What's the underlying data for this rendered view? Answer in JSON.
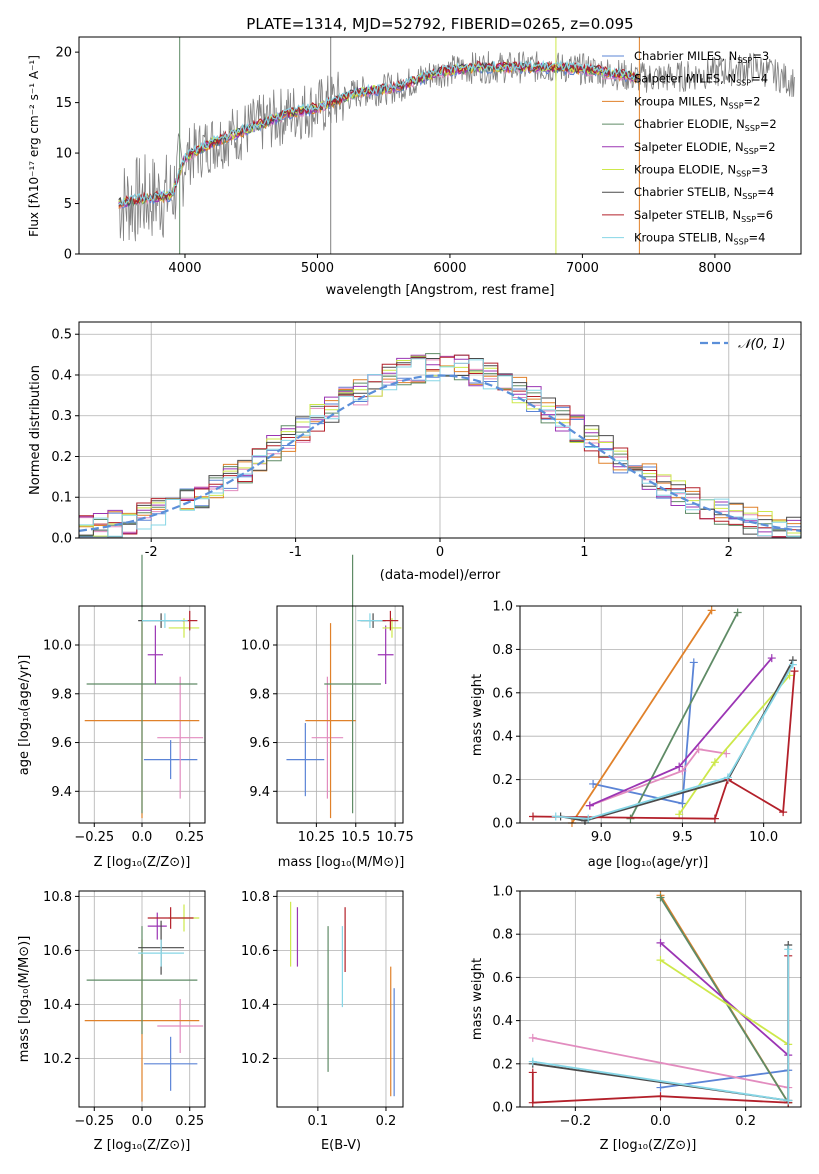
{
  "chart_data": [
    {
      "id": "spectrum",
      "type": "line",
      "title": "PLATE=1314, MJD=52792, FIBERID=0265, z=0.095",
      "xlabel": "wavelength [Angstrom, rest frame]",
      "ylabel": "Flux [fλ10⁻¹⁷ erg cm⁻² s⁻¹ A⁻¹]",
      "xlim": [
        3200,
        8650
      ],
      "ylim": [
        0,
        21.5
      ],
      "xticks": [
        4000,
        5000,
        6000,
        7000,
        8000
      ],
      "yticks": [
        0,
        5,
        10,
        15,
        20
      ],
      "grid": false,
      "legend_position": "top-right",
      "legend": [
        {
          "label": "Chabrier MILES, N",
          "sub": "SSP",
          "suffix": "=3",
          "color": "#5b84d6"
        },
        {
          "label": "Salpeter MILES, N",
          "sub": "SSP",
          "suffix": "=4",
          "color": "#e28cbf"
        },
        {
          "label": "Kroupa MILES, N",
          "sub": "SSP",
          "suffix": "=2",
          "color": "#e0812a"
        },
        {
          "label": "Chabrier ELODIE, N",
          "sub": "SSP",
          "suffix": "=2",
          "color": "#5f8b66"
        },
        {
          "label": "Salpeter ELODIE, N",
          "sub": "SSP",
          "suffix": "=2",
          "color": "#9b35b4"
        },
        {
          "label": "Kroupa ELODIE, N",
          "sub": "SSP",
          "suffix": "=3",
          "color": "#cde84a"
        },
        {
          "label": "Chabrier STELIB, N",
          "sub": "SSP",
          "suffix": "=4",
          "color": "#4a4a4a"
        },
        {
          "label": "Salpeter STELIB, N",
          "sub": "SSP",
          "suffix": "=6",
          "color": "#b3202a"
        },
        {
          "label": "Kroupa STELIB, N",
          "sub": "SSP",
          "suffix": "=4",
          "color": "#86d6e6"
        }
      ],
      "data_envelope": {
        "x": [
          3500,
          3700,
          3900,
          4000,
          4200,
          4500,
          4800,
          5000,
          5300,
          5600,
          5900,
          6200,
          6500,
          6800,
          7100,
          7400,
          7700,
          8000,
          8300,
          8600
        ],
        "y": [
          5.0,
          5.5,
          5.8,
          9.5,
          11.0,
          12.5,
          14.0,
          14.5,
          16.0,
          16.5,
          18.0,
          18.5,
          18.5,
          18.5,
          18.2,
          17.5,
          17.5,
          18.0,
          18.5,
          17.0
        ]
      }
    },
    {
      "id": "residuals",
      "type": "histogram",
      "xlabel": "(data-model)/error",
      "ylabel": "Normed distribution",
      "xlim": [
        -2.5,
        2.5
      ],
      "ylim": [
        0,
        0.53
      ],
      "xticks": [
        -2,
        -1,
        0,
        1,
        2
      ],
      "yticks": [
        0.0,
        0.1,
        0.2,
        0.3,
        0.4,
        0.5
      ],
      "grid": true,
      "legend": [
        {
          "label": "𝒩(0, 1)",
          "color": "#5b8fd9"
        }
      ],
      "legend_position": "top-right",
      "normal_curve": {
        "mean": 0,
        "sigma": 1
      }
    },
    {
      "id": "age-vs-Z",
      "type": "errorbar",
      "xlabel": "Z [log₁₀(Z/Z⊙)]",
      "ylabel": "age  [log₁₀(age/yr)]",
      "xlim": [
        -0.33,
        0.33
      ],
      "ylim": [
        9.27,
        10.16
      ],
      "xticks": [
        -0.25,
        0.0,
        0.25
      ],
      "yticks": [
        9.4,
        9.6,
        9.8,
        10.0
      ],
      "grid": true,
      "points": [
        {
          "x": 0.15,
          "y": 9.53,
          "xerr": 0.14,
          "yerr": 0.08,
          "color": "#5b84d6"
        },
        {
          "x": 0.2,
          "y": 9.62,
          "xerr": 0.12,
          "yerr": 0.25,
          "color": "#e28cbf"
        },
        {
          "x": 0.0,
          "y": 9.69,
          "xerr": 0.3,
          "yerr": 0.4,
          "color": "#e0812a"
        },
        {
          "x": 0.0,
          "y": 9.84,
          "xerr": 0.29,
          "yerr": 0.53,
          "color": "#5f8b66"
        },
        {
          "x": 0.07,
          "y": 9.96,
          "xerr": 0.04,
          "yerr": 0.12,
          "color": "#9b35b4"
        },
        {
          "x": 0.22,
          "y": 10.07,
          "xerr": 0.08,
          "yerr": 0.04,
          "color": "#cde84a"
        },
        {
          "x": 0.1,
          "y": 10.1,
          "xerr": 0.12,
          "yerr": 0.03,
          "color": "#4a4a4a"
        },
        {
          "x": 0.25,
          "y": 10.1,
          "xerr": 0.04,
          "yerr": 0.04,
          "color": "#b3202a"
        },
        {
          "x": 0.12,
          "y": 10.1,
          "xerr": 0.12,
          "yerr": 0.03,
          "color": "#86d6e6"
        }
      ]
    },
    {
      "id": "age-vs-mass",
      "type": "errorbar",
      "xlabel": "mass [log₁₀(M/M⊙)]",
      "ylabel": "",
      "xlim": [
        10.0,
        10.8
      ],
      "ylim": [
        9.27,
        10.16
      ],
      "xticks": [
        10.25,
        10.5,
        10.75
      ],
      "yticks": [
        9.4,
        9.6,
        9.8,
        10.0
      ],
      "grid": true,
      "points": [
        {
          "x": 10.18,
          "y": 9.53,
          "xerr": 0.12,
          "yerr": 0.15,
          "color": "#5b84d6"
        },
        {
          "x": 10.32,
          "y": 9.62,
          "xerr": 0.1,
          "yerr": 0.25,
          "color": "#e28cbf"
        },
        {
          "x": 10.34,
          "y": 9.69,
          "xerr": 0.16,
          "yerr": 0.4,
          "color": "#e0812a"
        },
        {
          "x": 10.48,
          "y": 9.84,
          "xerr": 0.18,
          "yerr": 0.53,
          "color": "#5f8b66"
        },
        {
          "x": 10.69,
          "y": 9.96,
          "xerr": 0.05,
          "yerr": 0.12,
          "color": "#9b35b4"
        },
        {
          "x": 10.73,
          "y": 10.07,
          "xerr": 0.06,
          "yerr": 0.04,
          "color": "#cde84a"
        },
        {
          "x": 10.61,
          "y": 10.1,
          "xerr": 0.08,
          "yerr": 0.03,
          "color": "#4a4a4a"
        },
        {
          "x": 10.72,
          "y": 10.1,
          "xerr": 0.05,
          "yerr": 0.04,
          "color": "#b3202a"
        },
        {
          "x": 10.59,
          "y": 10.1,
          "xerr": 0.08,
          "yerr": 0.03,
          "color": "#86d6e6"
        }
      ]
    },
    {
      "id": "weight-vs-age",
      "type": "line",
      "xlabel": "age  [log₁₀(age/yr)]",
      "ylabel": "mass weight",
      "xlim": [
        8.5,
        10.23
      ],
      "ylim": [
        0.0,
        1.0
      ],
      "xticks": [
        9.0,
        9.5,
        10.0
      ],
      "yticks": [
        0.0,
        0.2,
        0.4,
        0.6,
        0.8,
        1.0
      ],
      "grid": true,
      "series": [
        {
          "color": "#5b84d6",
          "points": [
            [
              8.95,
              0.18
            ],
            [
              9.5,
              0.09
            ],
            [
              9.57,
              0.74
            ]
          ]
        },
        {
          "color": "#e28cbf",
          "points": [
            [
              8.93,
              0.08
            ],
            [
              9.5,
              0.24
            ],
            [
              9.6,
              0.34
            ],
            [
              9.77,
              0.32
            ]
          ]
        },
        {
          "color": "#e0812a",
          "points": [
            [
              8.82,
              0.0
            ],
            [
              9.68,
              0.98
            ]
          ]
        },
        {
          "color": "#5f8b66",
          "points": [
            [
              9.18,
              0.02
            ],
            [
              9.84,
              0.97
            ]
          ]
        },
        {
          "color": "#9b35b4",
          "points": [
            [
              8.93,
              0.08
            ],
            [
              9.48,
              0.26
            ],
            [
              10.05,
              0.76
            ]
          ]
        },
        {
          "color": "#cde84a",
          "points": [
            [
              9.48,
              0.04
            ],
            [
              9.7,
              0.28
            ],
            [
              10.16,
              0.68
            ]
          ]
        },
        {
          "color": "#4a4a4a",
          "points": [
            [
              8.75,
              0.03
            ],
            [
              8.9,
              0.01
            ],
            [
              9.78,
              0.2
            ],
            [
              10.18,
              0.75
            ]
          ]
        },
        {
          "color": "#b3202a",
          "points": [
            [
              8.58,
              0.03
            ],
            [
              9.7,
              0.02
            ],
            [
              9.78,
              0.2
            ],
            [
              10.12,
              0.05
            ],
            [
              10.19,
              0.7
            ]
          ]
        },
        {
          "color": "#86d6e6",
          "points": [
            [
              8.72,
              0.03
            ],
            [
              8.92,
              0.02
            ],
            [
              9.78,
              0.21
            ],
            [
              10.18,
              0.73
            ]
          ]
        }
      ]
    },
    {
      "id": "mass-vs-Z",
      "type": "errorbar",
      "xlabel": "Z [log₁₀(Z/Z⊙)]",
      "ylabel": "mass [log₁₀(M/M⊙)]",
      "xlim": [
        -0.33,
        0.33
      ],
      "ylim": [
        10.02,
        10.82
      ],
      "xticks": [
        -0.25,
        0.0,
        0.25
      ],
      "yticks": [
        10.2,
        10.4,
        10.6,
        10.8
      ],
      "grid": true,
      "points": [
        {
          "x": 0.15,
          "y": 10.18,
          "xerr": 0.14,
          "yerr": 0.1,
          "color": "#5b84d6"
        },
        {
          "x": 0.2,
          "y": 10.32,
          "xerr": 0.12,
          "yerr": 0.1,
          "color": "#e28cbf"
        },
        {
          "x": 0.0,
          "y": 10.34,
          "xerr": 0.3,
          "yerr": 0.3,
          "color": "#e0812a"
        },
        {
          "x": 0.0,
          "y": 10.49,
          "xerr": 0.29,
          "yerr": 0.2,
          "color": "#5f8b66"
        },
        {
          "x": 0.08,
          "y": 10.69,
          "xerr": 0.05,
          "yerr": 0.05,
          "color": "#9b35b4"
        },
        {
          "x": 0.22,
          "y": 10.72,
          "xerr": 0.08,
          "yerr": 0.05,
          "color": "#cde84a"
        },
        {
          "x": 0.1,
          "y": 10.61,
          "xerr": 0.12,
          "yerr": 0.1,
          "color": "#4a4a4a"
        },
        {
          "x": 0.15,
          "y": 10.72,
          "xerr": 0.12,
          "yerr": 0.04,
          "color": "#b3202a"
        },
        {
          "x": 0.1,
          "y": 10.59,
          "xerr": 0.12,
          "yerr": 0.05,
          "color": "#86d6e6"
        }
      ]
    },
    {
      "id": "mass-vs-ebv",
      "type": "errorbar",
      "xlabel": "E(B-V)",
      "ylabel": "",
      "xlim": [
        0.04,
        0.225
      ],
      "ylim": [
        10.02,
        10.82
      ],
      "xticks": [
        0.1,
        0.2
      ],
      "yticks": [
        10.2,
        10.4,
        10.6,
        10.8
      ],
      "grid": true,
      "points": [
        {
          "x": 0.212,
          "y": 10.26,
          "yerr": 0.2,
          "color": "#5b84d6"
        },
        {
          "x": 0.207,
          "y": 10.3,
          "yerr": 0.24,
          "color": "#e0812a"
        },
        {
          "x": 0.115,
          "y": 10.42,
          "yerr": 0.27,
          "color": "#5f8b66"
        },
        {
          "x": 0.07,
          "y": 10.65,
          "yerr": 0.11,
          "color": "#9b35b4"
        },
        {
          "x": 0.06,
          "y": 10.66,
          "yerr": 0.12,
          "color": "#cde84a"
        },
        {
          "x": 0.136,
          "y": 10.54,
          "yerr": 0.15,
          "color": "#86d6e6"
        },
        {
          "x": 0.14,
          "y": 10.64,
          "yerr": 0.12,
          "color": "#b3202a"
        }
      ]
    },
    {
      "id": "weight-vs-Z",
      "type": "line",
      "xlabel": "Z [log₁₀(Z/Z⊙)]",
      "ylabel": "mass weight",
      "xlim": [
        -0.33,
        0.33
      ],
      "ylim": [
        0.0,
        1.0
      ],
      "xticks": [
        -0.2,
        0.0,
        0.2
      ],
      "yticks": [
        0.0,
        0.2,
        0.4,
        0.6,
        0.8,
        1.0
      ],
      "grid": true,
      "series": [
        {
          "color": "#5b84d6",
          "points": [
            [
              0.0,
              0.09
            ],
            [
              0.3,
              0.17
            ]
          ]
        },
        {
          "color": "#e28cbf",
          "points": [
            [
              -0.3,
              0.32
            ],
            [
              0.3,
              0.09
            ]
          ]
        },
        {
          "color": "#e0812a",
          "points": [
            [
              0.0,
              0.98
            ],
            [
              0.3,
              0.02
            ]
          ]
        },
        {
          "color": "#5f8b66",
          "points": [
            [
              0.0,
              0.97
            ],
            [
              0.3,
              0.02
            ]
          ]
        },
        {
          "color": "#9b35b4",
          "points": [
            [
              0.0,
              0.76
            ],
            [
              0.3,
              0.24
            ]
          ]
        },
        {
          "color": "#cde84a",
          "points": [
            [
              0.0,
              0.68
            ],
            [
              0.3,
              0.29
            ]
          ]
        },
        {
          "color": "#4a4a4a",
          "points": [
            [
              -0.3,
              0.2
            ],
            [
              0.3,
              0.03
            ],
            [
              0.3,
              0.75
            ]
          ]
        },
        {
          "color": "#b3202a",
          "points": [
            [
              -0.3,
              0.16
            ],
            [
              -0.3,
              0.02
            ],
            [
              0.0,
              0.05
            ],
            [
              0.3,
              0.02
            ],
            [
              0.3,
              0.7
            ]
          ]
        },
        {
          "color": "#86d6e6",
          "points": [
            [
              -0.3,
              0.21
            ],
            [
              0.3,
              0.03
            ],
            [
              0.3,
              0.73
            ]
          ]
        }
      ]
    }
  ]
}
